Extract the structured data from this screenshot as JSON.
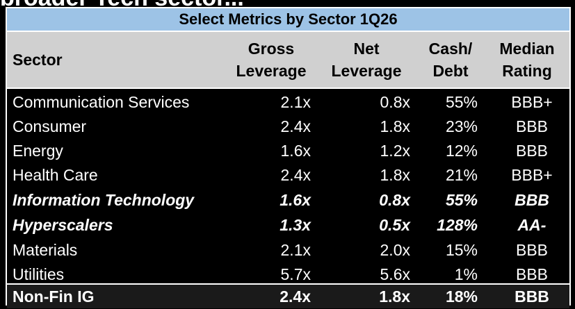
{
  "page_heading_partial": "broader Tech sector...",
  "table": {
    "title": "Select Metrics by Sector 1Q26",
    "headers": {
      "sector": "Sector",
      "gross_l1": "Gross",
      "gross_l2": "Leverage",
      "net_l1": "Net",
      "net_l2": "Leverage",
      "cash_l1": "Cash/",
      "cash_l2": "Debt",
      "rating_l1": "Median",
      "rating_l2": "Rating"
    },
    "rows": [
      {
        "sector": "Communication Services",
        "gross": "2.1x",
        "net": "0.8x",
        "cash": "55%",
        "rating": "BBB+"
      },
      {
        "sector": "Consumer",
        "gross": "2.4x",
        "net": "1.8x",
        "cash": "23%",
        "rating": "BBB"
      },
      {
        "sector": "Energy",
        "gross": "1.6x",
        "net": "1.2x",
        "cash": "12%",
        "rating": "BBB"
      },
      {
        "sector": "Health Care",
        "gross": "2.4x",
        "net": "1.8x",
        "cash": "21%",
        "rating": "BBB+"
      },
      {
        "sector": "Information Technology",
        "gross": "1.6x",
        "net": "0.8x",
        "cash": "55%",
        "rating": "BBB"
      },
      {
        "sector": "Hyperscalers",
        "gross": "1.3x",
        "net": "0.5x",
        "cash": "128%",
        "rating": "AA-"
      },
      {
        "sector": "Materials",
        "gross": "2.1x",
        "net": "2.0x",
        "cash": "15%",
        "rating": "BBB"
      },
      {
        "sector": "Utilities",
        "gross": "5.7x",
        "net": "5.6x",
        "cash": "1%",
        "rating": "BBB"
      }
    ],
    "total": {
      "sector": "Non-Fin IG",
      "gross": "2.4x",
      "net": "1.8x",
      "cash": "18%",
      "rating": "BBB"
    }
  },
  "colors": {
    "title_bg": "#9dc3e6",
    "header_bg": "#d0d0d0",
    "body_bg": "#000000"
  }
}
